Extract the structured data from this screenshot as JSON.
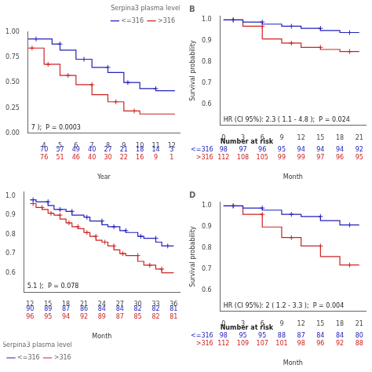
{
  "chart_data": [
    {
      "type": "step",
      "annotation": "7 );  P = 0.0003",
      "xlabel": "Year",
      "grid": false,
      "legend": "upper right",
      "legend_title": "Serpina3 plasma level",
      "xlim": [
        3,
        12.5
      ],
      "ylim": [
        0.0,
        1.0
      ],
      "xticks": [
        4,
        5,
        6,
        7,
        8,
        9,
        10,
        11,
        12
      ],
      "yticks": [
        {
          "value": 0.0,
          "label": "0.00"
        },
        0.25,
        {
          "value": 0.5,
          "label": "0.50"
        },
        0.75,
        {
          "value": 1.0,
          "label": "1.00"
        }
      ],
      "series": [
        {
          "name": "<=316",
          "color": "#2222bb",
          "x": [
            3,
            4,
            4.5,
            5,
            5,
            6,
            6,
            7,
            7,
            8,
            8,
            9,
            9,
            9.5,
            10,
            11,
            11,
            12,
            12.2
          ],
          "values": [
            0.93,
            0.93,
            0.88,
            0.88,
            0.82,
            0.82,
            0.73,
            0.73,
            0.65,
            0.65,
            0.6,
            0.6,
            0.5,
            0.5,
            0.44,
            0.44,
            0.42,
            0.42,
            0.42
          ],
          "censor_x": [
            3.5,
            5,
            6.5,
            8,
            9.25,
            11
          ],
          "censor_y": [
            0.93,
            0.88,
            0.73,
            0.65,
            0.5,
            0.44
          ]
        },
        {
          "name": ">316",
          "color": "#cc2222",
          "x": [
            3,
            3.5,
            4,
            4,
            4.5,
            5,
            5,
            6,
            6,
            7,
            7,
            8,
            8,
            9,
            9,
            9.3,
            10,
            10,
            12.2
          ],
          "values": [
            0.84,
            0.84,
            0.76,
            0.68,
            0.68,
            0.63,
            0.57,
            0.57,
            0.48,
            0.48,
            0.38,
            0.38,
            0.31,
            0.31,
            0.22,
            0.22,
            0.2,
            0.19,
            0.19
          ],
          "censor_x": [
            3.25,
            4.25,
            5.5,
            7,
            8.5,
            9.65
          ],
          "censor_y": [
            0.84,
            0.68,
            0.57,
            0.48,
            0.31,
            0.22
          ]
        }
      ],
      "risk_table": {
        "x": [
          4,
          5,
          6,
          7,
          8,
          9,
          10,
          11,
          12
        ],
        "rows": [
          {
            "color": "#2222bb",
            "values": [
              70,
              57,
              49,
              40,
              27,
              21,
              18,
              14,
              3
            ]
          },
          {
            "color": "#cc2222",
            "values": [
              76,
              51,
              46,
              40,
              30,
              22,
              16,
              9,
              1
            ]
          }
        ]
      }
    },
    {
      "type": "step",
      "title": "B",
      "annotation": "HR (CI 95%): 2.3 ( 1.1 - 4.8 );  P = 0.024",
      "xlabel": "Month",
      "ylabel": "Survival probability",
      "grid": false,
      "xlim": [
        -0.5,
        22
      ],
      "ylim": [
        0.5,
        1.02
      ],
      "xticks": [
        0,
        3,
        6,
        9,
        12,
        15,
        18,
        21
      ],
      "yticks": [
        0.6,
        0.7,
        0.8,
        0.9,
        {
          "value": 1.0,
          "label": "1.0"
        }
      ],
      "series": [
        {
          "color": "#2222bb",
          "x": [
            0,
            3,
            3,
            6,
            6,
            9,
            9,
            12,
            12,
            15,
            15,
            18,
            18,
            21,
            21
          ],
          "values": [
            1.0,
            1.0,
            0.99,
            0.99,
            0.98,
            0.98,
            0.97,
            0.97,
            0.96,
            0.96,
            0.95,
            0.95,
            0.94,
            0.94,
            0.94
          ],
          "censor_x": [
            1.5,
            6,
            10.5,
            15,
            19.5
          ],
          "censor_y": [
            1.0,
            0.99,
            0.97,
            0.96,
            0.94
          ]
        },
        {
          "color": "#cc2222",
          "x": [
            0,
            3,
            3,
            6,
            6,
            9,
            9,
            12,
            12,
            15,
            15,
            18,
            18,
            21,
            21
          ],
          "values": [
            1.0,
            1.0,
            0.97,
            0.97,
            0.91,
            0.91,
            0.89,
            0.89,
            0.87,
            0.87,
            0.86,
            0.86,
            0.85,
            0.85,
            0.85
          ],
          "censor_x": [
            1.5,
            6,
            10.5,
            15,
            19.5
          ],
          "censor_y": [
            1.0,
            0.97,
            0.89,
            0.87,
            0.85
          ]
        }
      ],
      "risk_table": {
        "title": "Number at risk",
        "x": [
          0,
          3,
          6,
          9,
          12,
          15,
          18,
          21
        ],
        "rows": [
          {
            "label": "<=316",
            "color": "#2222bb",
            "values": [
              98,
              97,
              96,
              95,
              94,
              94,
              94,
              92
            ]
          },
          {
            "label": ">316",
            "color": "#cc2222",
            "values": [
              112,
              108,
              105,
              99,
              99,
              97,
              96,
              95
            ]
          }
        ]
      }
    },
    {
      "type": "step",
      "annotation": "5.1 );  P = 0.078",
      "xlabel": "Month",
      "grid": false,
      "legend": "lower left",
      "legend_title": "Serpina3 plasma level",
      "xlim": [
        11,
        37
      ],
      "ylim": [
        0.5,
        1.02
      ],
      "xticks": [
        12,
        15,
        18,
        21,
        24,
        27,
        30,
        33,
        36
      ],
      "yticks": [
        0.6,
        0.7,
        0.8,
        0.9,
        {
          "value": 1.0,
          "label": "1.0"
        }
      ],
      "series": [
        {
          "name": "<=316",
          "color": "#2222bb",
          "x": [
            12,
            13,
            13,
            15,
            15,
            16,
            16,
            18,
            18,
            19,
            19,
            21,
            21,
            22,
            22,
            24,
            24,
            25,
            25,
            27,
            27,
            28,
            28,
            30,
            30,
            31,
            31,
            33,
            33,
            34,
            34,
            36
          ],
          "values": [
            0.98,
            0.98,
            0.97,
            0.97,
            0.95,
            0.95,
            0.93,
            0.93,
            0.92,
            0.92,
            0.9,
            0.9,
            0.89,
            0.89,
            0.87,
            0.87,
            0.85,
            0.85,
            0.84,
            0.84,
            0.82,
            0.82,
            0.81,
            0.81,
            0.79,
            0.79,
            0.78,
            0.78,
            0.76,
            0.76,
            0.74,
            0.74
          ],
          "censor_x": [
            12.5,
            15,
            17,
            19,
            21.5,
            24,
            26,
            28,
            30.5,
            33,
            35
          ],
          "censor_y": [
            0.98,
            0.97,
            0.93,
            0.92,
            0.89,
            0.87,
            0.84,
            0.82,
            0.79,
            0.78,
            0.74
          ]
        },
        {
          "name": ">316",
          "color": "#cc2222",
          "x": [
            12,
            13,
            13,
            14,
            14,
            15,
            15,
            16,
            16,
            17,
            17,
            18,
            18,
            19,
            19,
            20,
            20,
            21,
            21,
            22,
            22,
            23,
            23,
            24,
            24,
            25,
            25,
            26,
            26,
            27,
            27,
            28,
            28,
            30,
            30,
            31,
            31,
            33,
            33,
            34,
            34,
            36
          ],
          "values": [
            0.96,
            0.96,
            0.94,
            0.94,
            0.93,
            0.93,
            0.91,
            0.91,
            0.9,
            0.9,
            0.88,
            0.88,
            0.86,
            0.86,
            0.84,
            0.84,
            0.83,
            0.83,
            0.81,
            0.81,
            0.79,
            0.79,
            0.77,
            0.77,
            0.76,
            0.76,
            0.74,
            0.74,
            0.72,
            0.72,
            0.7,
            0.7,
            0.69,
            0.69,
            0.66,
            0.66,
            0.64,
            0.64,
            0.62,
            0.62,
            0.6,
            0.6
          ],
          "censor_x": [
            12.5,
            14,
            15.5,
            17,
            18.5,
            20,
            21.5,
            23,
            24.5,
            26,
            27.5,
            30,
            32,
            34
          ],
          "censor_y": [
            0.96,
            0.94,
            0.91,
            0.9,
            0.86,
            0.84,
            0.81,
            0.79,
            0.76,
            0.74,
            0.7,
            0.69,
            0.64,
            0.62
          ]
        }
      ],
      "risk_table": {
        "x": [
          12,
          15,
          18,
          21,
          24,
          27,
          30,
          33,
          36
        ],
        "rows": [
          {
            "color": "#2222bb",
            "values": [
              90,
              89,
              87,
              86,
              84,
              84,
              82,
              82,
              81
            ]
          },
          {
            "color": "#cc2222",
            "values": [
              96,
              95,
              94,
              92,
              89,
              87,
              85,
              82,
              81
            ]
          }
        ]
      }
    },
    {
      "type": "step",
      "title": "D",
      "annotation": "HR (CI 95%): 2 ( 1.2 - 3.3 );  P = 0.004",
      "xlabel": "Month",
      "ylabel": "Survival probability",
      "grid": false,
      "xlim": [
        -0.5,
        22
      ],
      "ylim": [
        0.5,
        1.02
      ],
      "xticks": [
        0,
        3,
        6,
        9,
        12,
        15,
        18,
        21
      ],
      "yticks": [
        0.6,
        0.7,
        0.8,
        0.9,
        {
          "value": 1.0,
          "label": "1.0"
        }
      ],
      "series": [
        {
          "color": "#2222bb",
          "x": [
            0,
            3,
            3,
            6,
            6,
            9,
            9,
            12,
            12,
            15,
            15,
            18,
            18,
            21,
            21
          ],
          "values": [
            1.0,
            1.0,
            0.99,
            0.99,
            0.98,
            0.98,
            0.96,
            0.96,
            0.95,
            0.95,
            0.93,
            0.93,
            0.91,
            0.91,
            0.91
          ],
          "censor_x": [
            1.5,
            6,
            10.5,
            15,
            19.5
          ],
          "censor_y": [
            1.0,
            0.99,
            0.96,
            0.95,
            0.91
          ]
        },
        {
          "color": "#cc2222",
          "x": [
            0,
            3,
            3,
            6,
            6,
            9,
            9,
            12,
            12,
            15,
            15,
            18,
            18,
            21,
            21
          ],
          "values": [
            1.0,
            1.0,
            0.96,
            0.96,
            0.9,
            0.9,
            0.85,
            0.85,
            0.81,
            0.81,
            0.76,
            0.76,
            0.72,
            0.72,
            0.72
          ],
          "censor_x": [
            1.5,
            6,
            10.5,
            15,
            19.5
          ],
          "censor_y": [
            1.0,
            0.96,
            0.85,
            0.81,
            0.72
          ]
        }
      ],
      "risk_table": {
        "title": "Number at risk",
        "x": [
          0,
          3,
          6,
          9,
          12,
          15,
          18,
          21
        ],
        "rows": [
          {
            "label": "<=316",
            "color": "#2222bb",
            "values": [
              98,
              95,
              95,
              88,
              87,
              84,
              84,
              80
            ]
          },
          {
            "label": ">316",
            "color": "#cc2222",
            "values": [
              112,
              109,
              107,
              101,
              98,
              96,
              92,
              88
            ]
          }
        ]
      }
    }
  ]
}
